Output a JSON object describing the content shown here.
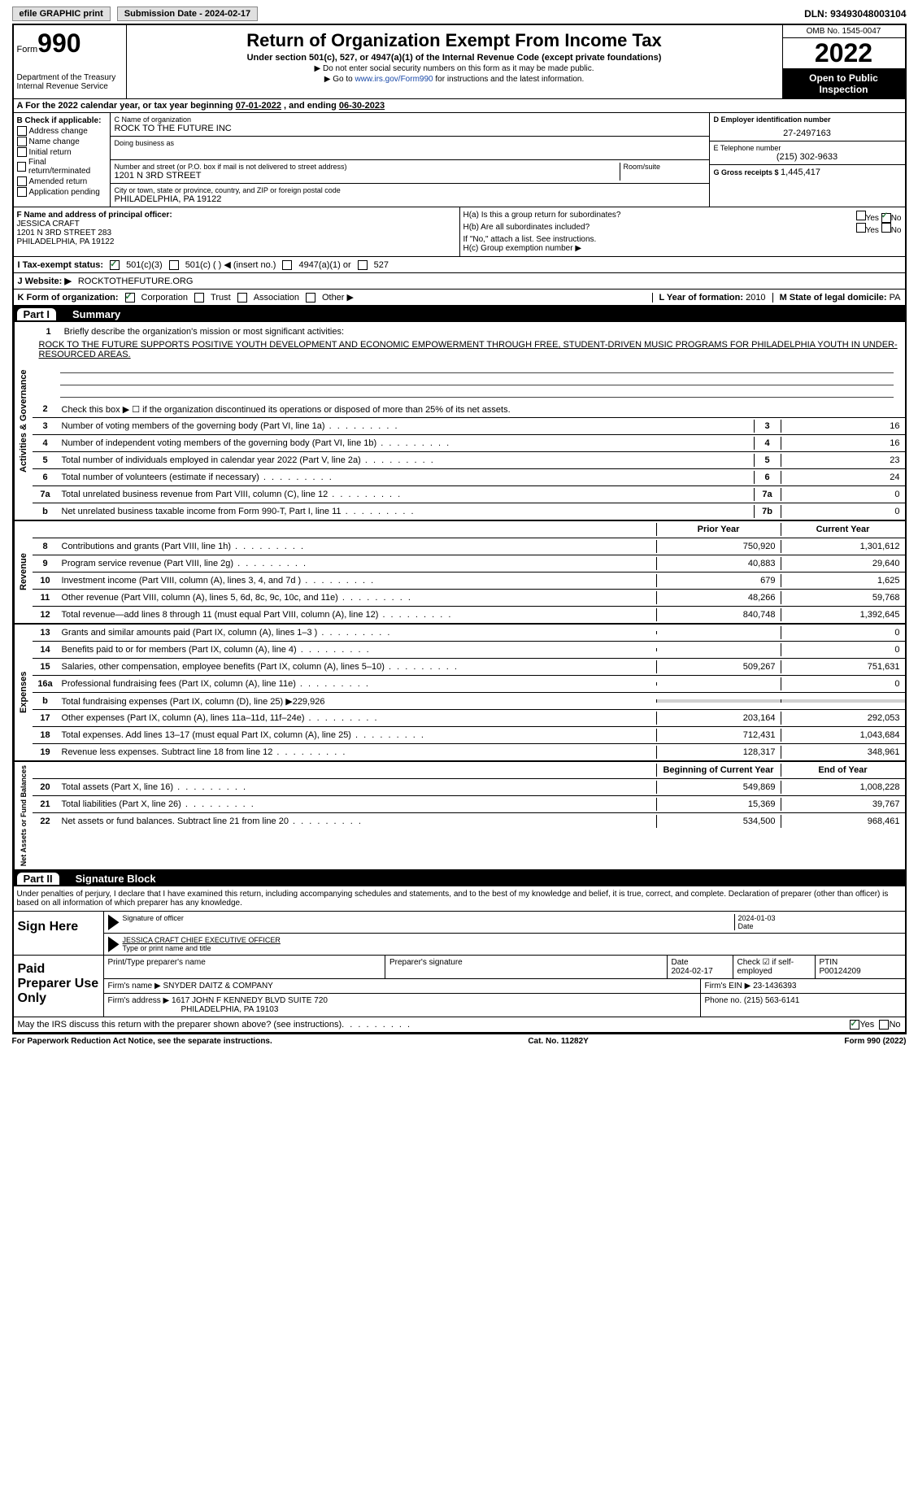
{
  "top": {
    "efile": "efile GRAPHIC print",
    "submission_label": "Submission Date - ",
    "submission_date": "2024-02-17",
    "dln_label": "DLN: ",
    "dln": "93493048003104"
  },
  "header": {
    "form_label": "Form",
    "form_num": "990",
    "dept": "Department of the Treasury\nInternal Revenue Service",
    "title": "Return of Organization Exempt From Income Tax",
    "subtitle": "Under section 501(c), 527, or 4947(a)(1) of the Internal Revenue Code (except private foundations)",
    "note1": "▶ Do not enter social security numbers on this form as it may be made public.",
    "note2_pre": "▶ Go to ",
    "note2_link": "www.irs.gov/Form990",
    "note2_post": " for instructions and the latest information.",
    "omb": "OMB No. 1545-0047",
    "year": "2022",
    "open": "Open to Public Inspection"
  },
  "row_a": {
    "text": "A For the 2022 calendar year, or tax year beginning ",
    "begin": "07-01-2022",
    "mid": "   , and ending ",
    "end": "06-30-2023"
  },
  "col_b": {
    "header": "B Check if applicable:",
    "items": [
      "Address change",
      "Name change",
      "Initial return",
      "Final return/terminated",
      "Amended return",
      "Application pending"
    ]
  },
  "col_c": {
    "name_lbl": "C Name of organization",
    "name": "ROCK TO THE FUTURE INC",
    "dba_lbl": "Doing business as",
    "addr_lbl": "Number and street (or P.O. box if mail is not delivered to street address)",
    "addr": "1201 N 3RD STREET",
    "suite_lbl": "Room/suite",
    "city_lbl": "City or town, state or province, country, and ZIP or foreign postal code",
    "city": "PHILADELPHIA, PA  19122"
  },
  "col_d": {
    "ein_lbl": "D Employer identification number",
    "ein": "27-2497163",
    "tel_lbl": "E Telephone number",
    "tel": "(215) 302-9633",
    "gross_lbl": "G Gross receipts $ ",
    "gross": "1,445,417"
  },
  "section_f": {
    "f_lbl": "F Name and address of principal officer:",
    "officer": "JESSICA CRAFT",
    "addr1": "1201 N 3RD STREET 283",
    "addr2": "PHILADELPHIA, PA  19122",
    "ha": "H(a)  Is this a group return for subordinates?",
    "hb": "H(b)  Are all subordinates included?",
    "hb_note": "If \"No,\" attach a list. See instructions.",
    "hc": "H(c)  Group exemption number ▶",
    "yes": "Yes",
    "no": "No"
  },
  "row_i": {
    "lbl": "I   Tax-exempt status:",
    "o1": "501(c)(3)",
    "o2": "501(c) (  ) ◀ (insert no.)",
    "o3": "4947(a)(1) or",
    "o4": "527"
  },
  "row_j": {
    "lbl": "J   Website: ▶",
    "val": "ROCKTOTHEFUTURE.ORG"
  },
  "row_k": {
    "lbl": "K Form of organization:",
    "corp": "Corporation",
    "trust": "Trust",
    "assoc": "Association",
    "other": "Other ▶",
    "l_lbl": "L Year of formation: ",
    "l_val": "2010",
    "m_lbl": "M State of legal domicile: ",
    "m_val": "PA"
  },
  "part1": {
    "label": "Part I",
    "title": "Summary"
  },
  "summary": {
    "vtab1": "Activities & Governance",
    "line1_lbl": "Briefly describe the organization's mission or most significant activities:",
    "mission": "ROCK TO THE FUTURE SUPPORTS POSITIVE YOUTH DEVELOPMENT AND ECONOMIC EMPOWERMENT THROUGH FREE, STUDENT-DRIVEN MUSIC PROGRAMS FOR PHILADELPHIA YOUTH IN UNDER-RESOURCED AREAS.",
    "line2": "Check this box ▶ ☐  if the organization discontinued its operations or disposed of more than 25% of its net assets.",
    "rows_ag": [
      {
        "n": "3",
        "d": "Number of voting members of the governing body (Part VI, line 1a)",
        "b": "3",
        "v": "16"
      },
      {
        "n": "4",
        "d": "Number of independent voting members of the governing body (Part VI, line 1b)",
        "b": "4",
        "v": "16"
      },
      {
        "n": "5",
        "d": "Total number of individuals employed in calendar year 2022 (Part V, line 2a)",
        "b": "5",
        "v": "23"
      },
      {
        "n": "6",
        "d": "Total number of volunteers (estimate if necessary)",
        "b": "6",
        "v": "24"
      },
      {
        "n": "7a",
        "d": "Total unrelated business revenue from Part VIII, column (C), line 12",
        "b": "7a",
        "v": "0"
      },
      {
        "n": "b",
        "d": "Net unrelated business taxable income from Form 990-T, Part I, line 11",
        "b": "7b",
        "v": "0"
      }
    ],
    "vtab2": "Revenue",
    "hdr_prior": "Prior Year",
    "hdr_current": "Current Year",
    "rows_rev": [
      {
        "n": "8",
        "d": "Contributions and grants (Part VIII, line 1h)",
        "p": "750,920",
        "c": "1,301,612"
      },
      {
        "n": "9",
        "d": "Program service revenue (Part VIII, line 2g)",
        "p": "40,883",
        "c": "29,640"
      },
      {
        "n": "10",
        "d": "Investment income (Part VIII, column (A), lines 3, 4, and 7d )",
        "p": "679",
        "c": "1,625"
      },
      {
        "n": "11",
        "d": "Other revenue (Part VIII, column (A), lines 5, 6d, 8c, 9c, 10c, and 11e)",
        "p": "48,266",
        "c": "59,768"
      },
      {
        "n": "12",
        "d": "Total revenue—add lines 8 through 11 (must equal Part VIII, column (A), line 12)",
        "p": "840,748",
        "c": "1,392,645"
      }
    ],
    "vtab3": "Expenses",
    "rows_exp": [
      {
        "n": "13",
        "d": "Grants and similar amounts paid (Part IX, column (A), lines 1–3 )",
        "p": "",
        "c": "0"
      },
      {
        "n": "14",
        "d": "Benefits paid to or for members (Part IX, column (A), line 4)",
        "p": "",
        "c": "0"
      },
      {
        "n": "15",
        "d": "Salaries, other compensation, employee benefits (Part IX, column (A), lines 5–10)",
        "p": "509,267",
        "c": "751,631"
      },
      {
        "n": "16a",
        "d": "Professional fundraising fees (Part IX, column (A), line 11e)",
        "p": "",
        "c": "0"
      },
      {
        "n": "b",
        "d": "Total fundraising expenses (Part IX, column (D), line 25) ▶229,926",
        "shade": true
      },
      {
        "n": "17",
        "d": "Other expenses (Part IX, column (A), lines 11a–11d, 11f–24e)",
        "p": "203,164",
        "c": "292,053"
      },
      {
        "n": "18",
        "d": "Total expenses. Add lines 13–17 (must equal Part IX, column (A), line 25)",
        "p": "712,431",
        "c": "1,043,684"
      },
      {
        "n": "19",
        "d": "Revenue less expenses. Subtract line 18 from line 12",
        "p": "128,317",
        "c": "348,961"
      }
    ],
    "vtab4": "Net Assets or Fund Balances",
    "hdr_begin": "Beginning of Current Year",
    "hdr_end": "End of Year",
    "rows_net": [
      {
        "n": "20",
        "d": "Total assets (Part X, line 16)",
        "p": "549,869",
        "c": "1,008,228"
      },
      {
        "n": "21",
        "d": "Total liabilities (Part X, line 26)",
        "p": "15,369",
        "c": "39,767"
      },
      {
        "n": "22",
        "d": "Net assets or fund balances. Subtract line 21 from line 20",
        "p": "534,500",
        "c": "968,461"
      }
    ]
  },
  "part2": {
    "label": "Part II",
    "title": "Signature Block"
  },
  "sig": {
    "intro": "Under penalties of perjury, I declare that I have examined this return, including accompanying schedules and statements, and to the best of my knowledge and belief, it is true, correct, and complete. Declaration of preparer (other than officer) is based on all information of which preparer has any knowledge.",
    "sign_here": "Sign Here",
    "sig_officer_lbl": "Signature of officer",
    "sig_date": "2024-01-03",
    "date_lbl": "Date",
    "name_title": "JESSICA CRAFT  CHIEF EXECUTIVE OFFICER",
    "name_lbl": "Type or print name and title"
  },
  "prep": {
    "label": "Paid Preparer Use Only",
    "name_lbl": "Print/Type preparer's name",
    "sig_lbl": "Preparer's signature",
    "date_lbl": "Date",
    "date": "2024-02-17",
    "check_lbl": "Check ☑ if self-employed",
    "ptin_lbl": "PTIN",
    "ptin": "P00124209",
    "firm_name_lbl": "Firm's name    ▶ ",
    "firm_name": "SNYDER DAITZ & COMPANY",
    "firm_ein_lbl": "Firm's EIN ▶ ",
    "firm_ein": "23-1436393",
    "firm_addr_lbl": "Firm's address ▶ ",
    "firm_addr": "1617 JOHN F KENNEDY BLVD SUITE 720",
    "firm_city": "PHILADELPHIA, PA  19103",
    "phone_lbl": "Phone no. ",
    "phone": "(215) 563-6141",
    "discuss": "May the IRS discuss this return with the preparer shown above? (see instructions)",
    "yes": "Yes",
    "no": "No"
  },
  "footer": {
    "left": "For Paperwork Reduction Act Notice, see the separate instructions.",
    "center": "Cat. No. 11282Y",
    "right": "Form 990 (2022)"
  }
}
